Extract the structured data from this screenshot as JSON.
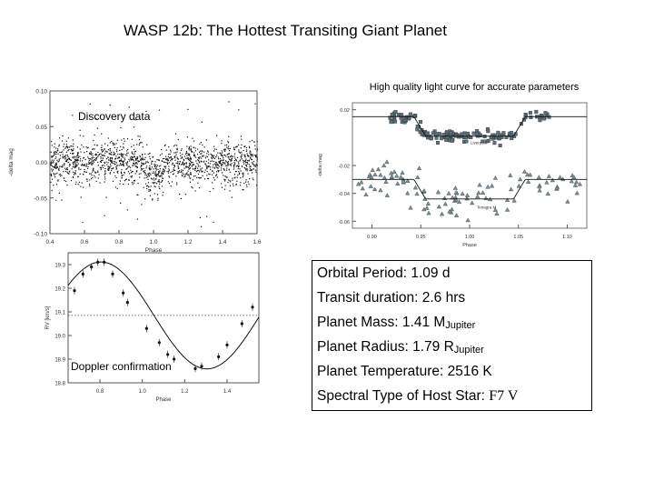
{
  "slide": {
    "title": "WASP 12b: The  Hottest Transiting Giant Planet"
  },
  "panels": {
    "discovery": {
      "label": "Discovery data",
      "ylabel": "-delta mag",
      "xlabel": "Phase",
      "yticks": [
        "0.10",
        "0.05",
        "0.00",
        "-0.05",
        "-0.10"
      ],
      "xticks": [
        "0.4",
        "0.6",
        "0.8",
        "1.0",
        "1.2",
        "1.4",
        "1.6"
      ]
    },
    "lightcurve": {
      "caption": "High quality light curve for accurate parameters",
      "ylabel": "-delta mag",
      "xlabel": "Phase",
      "yticks": [
        "0.02",
        "-0.02",
        "-0.04",
        "-0.06"
      ],
      "xticks": [
        "0.90",
        "0.95",
        "1.00",
        "1.05",
        "1.10"
      ],
      "series": [
        "Liverpool",
        "Tenagra M"
      ]
    },
    "rv": {
      "label": "Doppler confirmation",
      "ylabel": "RV [km/s]",
      "xlabel": "Phase",
      "yticks": [
        "19.3",
        "19.2",
        "19.1",
        "19.0",
        "18.9",
        "18.8"
      ],
      "xticks": [
        "0.8",
        "1.0",
        "1.2",
        "1.4"
      ]
    }
  },
  "properties": {
    "orbital_period": "Orbital Period: 1.09 d",
    "transit_duration": "Transit duration: 2.6 hrs",
    "mass_label": "Planet Mass: 1.41 M",
    "mass_sub": "Jupiter",
    "radius_label": "Planet Radius: 1.79 R",
    "radius_sub": "Jupiter",
    "temperature": "Planet Temperature: 2516 K",
    "spectral_label": "Spectral Type of Host Star: ",
    "spectral_value": "F7 V"
  },
  "chart_data": [
    {
      "type": "scatter",
      "title": "",
      "xlabel": "Phase",
      "ylabel": "-delta mag",
      "xlim": [
        0.4,
        1.6
      ],
      "ylim": [
        -0.1,
        0.1
      ],
      "grid": false,
      "x_ticks": [
        0.4,
        0.6,
        0.8,
        1.0,
        1.2,
        1.4,
        1.6
      ],
      "y_ticks": [
        0.1,
        0.05,
        0.0,
        -0.05,
        -0.1
      ],
      "cloud": {
        "center_y": 0.0,
        "scatter": 0.015,
        "transit_center_x": 1.0,
        "transit_depth": 0.014
      }
    },
    {
      "type": "scatter",
      "title": "",
      "xlabel": "Phase",
      "ylabel": "-delta mag",
      "xlim": [
        0.88,
        1.12
      ],
      "ylim": [
        -0.065,
        0.025
      ],
      "grid": false,
      "x_ticks": [
        0.9,
        0.95,
        1.0,
        1.05,
        1.1
      ],
      "y_ticks": [
        0.02,
        -0.02,
        -0.04,
        -0.06
      ],
      "series": [
        {
          "name": "Liverpool",
          "baseline": 0.015,
          "depth": 0.014,
          "ingress": 0.943,
          "egress": 1.057,
          "scatter": 0.002,
          "marker": "square"
        },
        {
          "name": "Tenagra M",
          "baseline": -0.03,
          "depth": 0.014,
          "ingress": 0.943,
          "egress": 1.057,
          "scatter": 0.006,
          "marker": "triangle"
        }
      ]
    },
    {
      "type": "scatter",
      "title": "",
      "xlabel": "Phase",
      "ylabel": "RV [km/s]",
      "xlim": [
        0.65,
        1.55
      ],
      "ylim": [
        18.8,
        19.35
      ],
      "grid": false,
      "x_ticks": [
        0.8,
        1.0,
        1.2,
        1.4
      ],
      "y_ticks": [
        19.3,
        19.2,
        19.1,
        19.0,
        18.9,
        18.8
      ],
      "systemic": 19.085,
      "amplitude": 0.226,
      "points": [
        {
          "x": 0.68,
          "y": 19.19
        },
        {
          "x": 0.72,
          "y": 19.26
        },
        {
          "x": 0.76,
          "y": 19.29
        },
        {
          "x": 0.79,
          "y": 19.31
        },
        {
          "x": 0.82,
          "y": 19.31
        },
        {
          "x": 0.86,
          "y": 19.26
        },
        {
          "x": 0.91,
          "y": 19.18
        },
        {
          "x": 0.93,
          "y": 19.14
        },
        {
          "x": 1.02,
          "y": 19.03
        },
        {
          "x": 1.08,
          "y": 18.97
        },
        {
          "x": 1.12,
          "y": 18.92
        },
        {
          "x": 1.15,
          "y": 18.9
        },
        {
          "x": 1.25,
          "y": 18.86
        },
        {
          "x": 1.28,
          "y": 18.87
        },
        {
          "x": 1.36,
          "y": 18.91
        },
        {
          "x": 1.4,
          "y": 18.96
        },
        {
          "x": 1.47,
          "y": 19.05
        },
        {
          "x": 1.52,
          "y": 19.12
        }
      ]
    }
  ]
}
